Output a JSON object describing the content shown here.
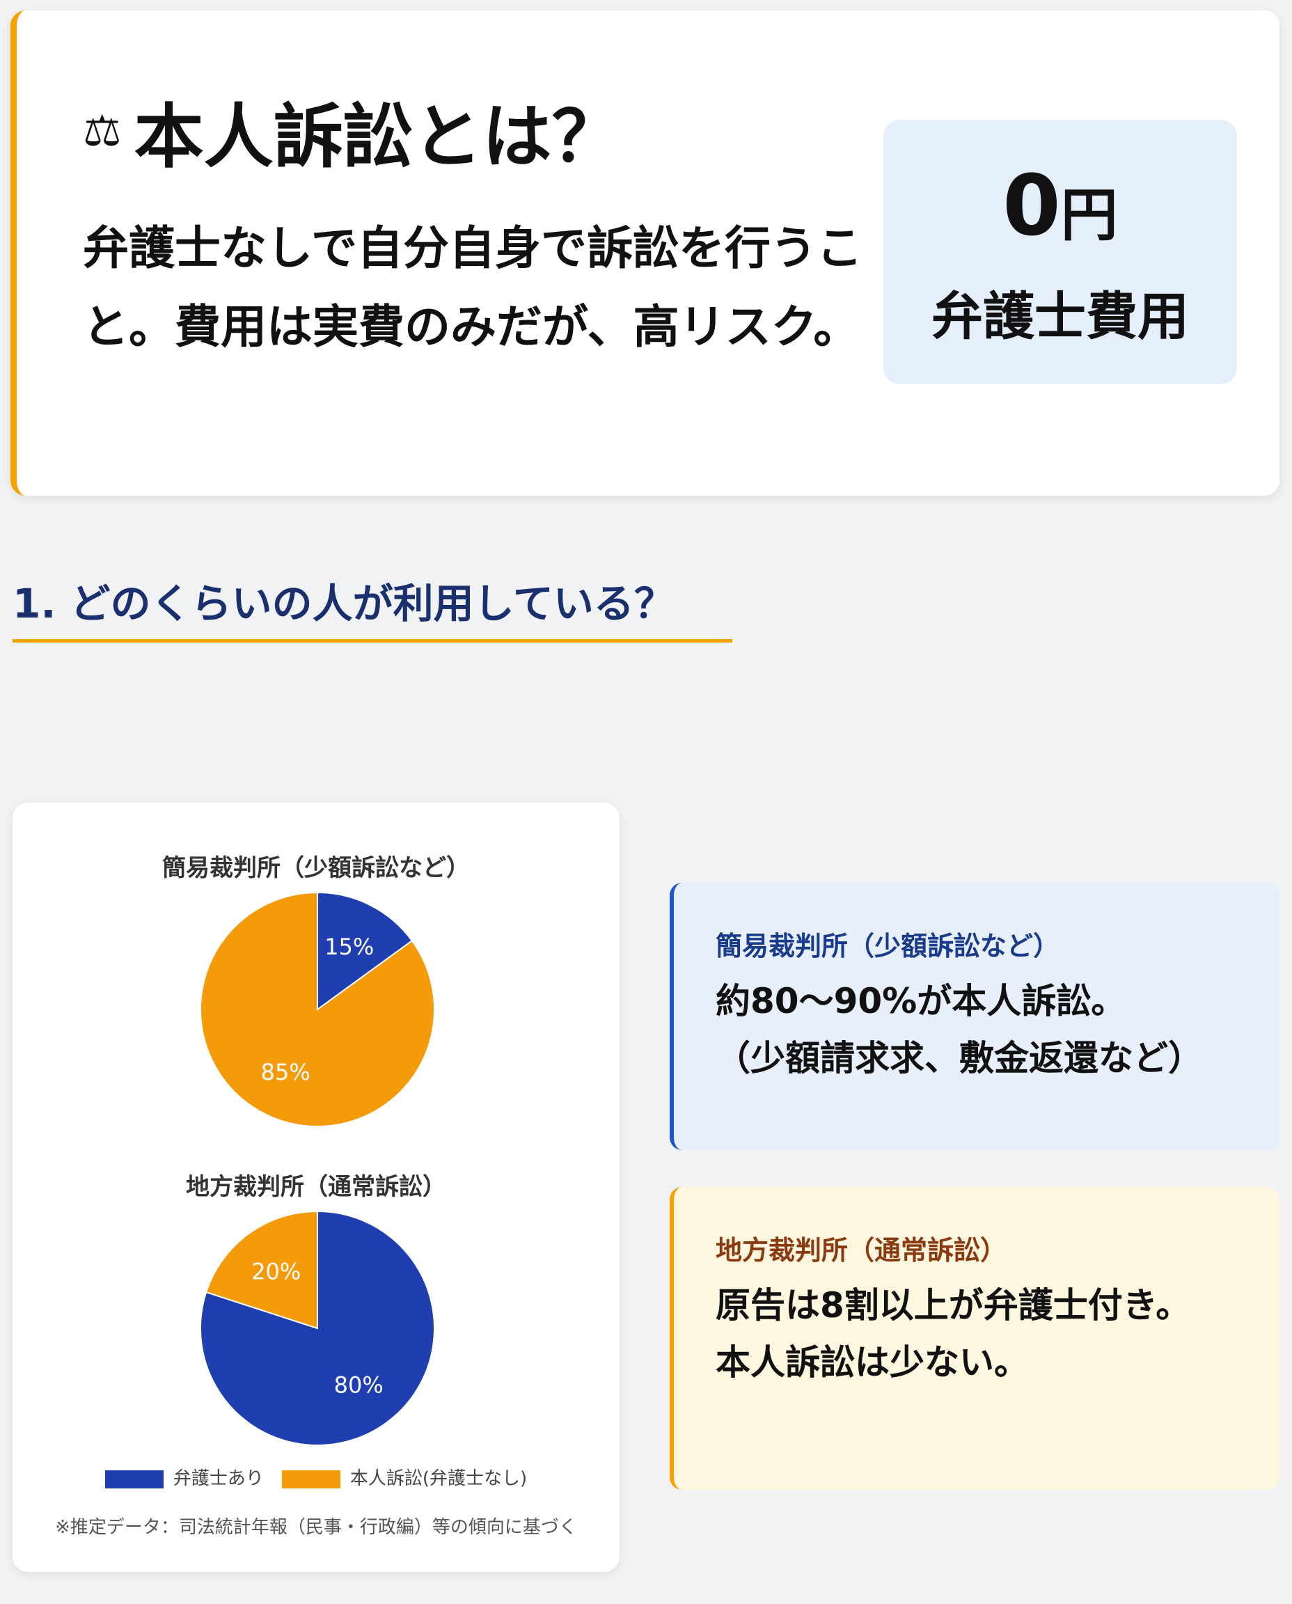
{
  "hero": {
    "icon": "scale-icon",
    "title": "本人訴訟とは？",
    "body": "弁護士なしで自分自身で訴訟を行うこと。費用は実費のみだが、高リスク。",
    "zero_value": "0",
    "zero_unit": "円",
    "zero_label": "弁護士費用"
  },
  "section": {
    "title": "1. どのくらいの人が利用している？"
  },
  "colors": {
    "lawyer": "#1f3fb0",
    "self": "#f59b0a",
    "accent": "#f5a100"
  },
  "chart_data": [
    {
      "type": "pie",
      "title": "簡易裁判所（少額訴訟など）",
      "categories": [
        "弁護士あり",
        "本人訴訟（弁護士なし）"
      ],
      "values": [
        15,
        85
      ],
      "labels": [
        "15%",
        "85%"
      ]
    },
    {
      "type": "pie",
      "title": "地方裁判所（通常訴訟）",
      "categories": [
        "弁護士あり",
        "本人訴訟（弁護士なし）"
      ],
      "values": [
        80,
        20
      ],
      "labels": [
        "80%",
        "20%"
      ]
    }
  ],
  "legend": [
    "弁護士あり",
    "本人訴訟(弁護士なし)"
  ],
  "note": "※推定データ：司法統計年報（民事・行政編）等の傾向に基づく",
  "info": [
    {
      "title": "簡易裁判所（少額訴訟など）",
      "body": "約80〜90%が本人訴訟。\n（少額請求求、敷金返還など）",
      "title_color": "#1a3b8c"
    },
    {
      "title": "地方裁判所（通常訴訟）",
      "body": "原告は8割以上が弁護士付き。\n本人訴訟は少ない。",
      "title_color": "#8a3a10"
    }
  ]
}
